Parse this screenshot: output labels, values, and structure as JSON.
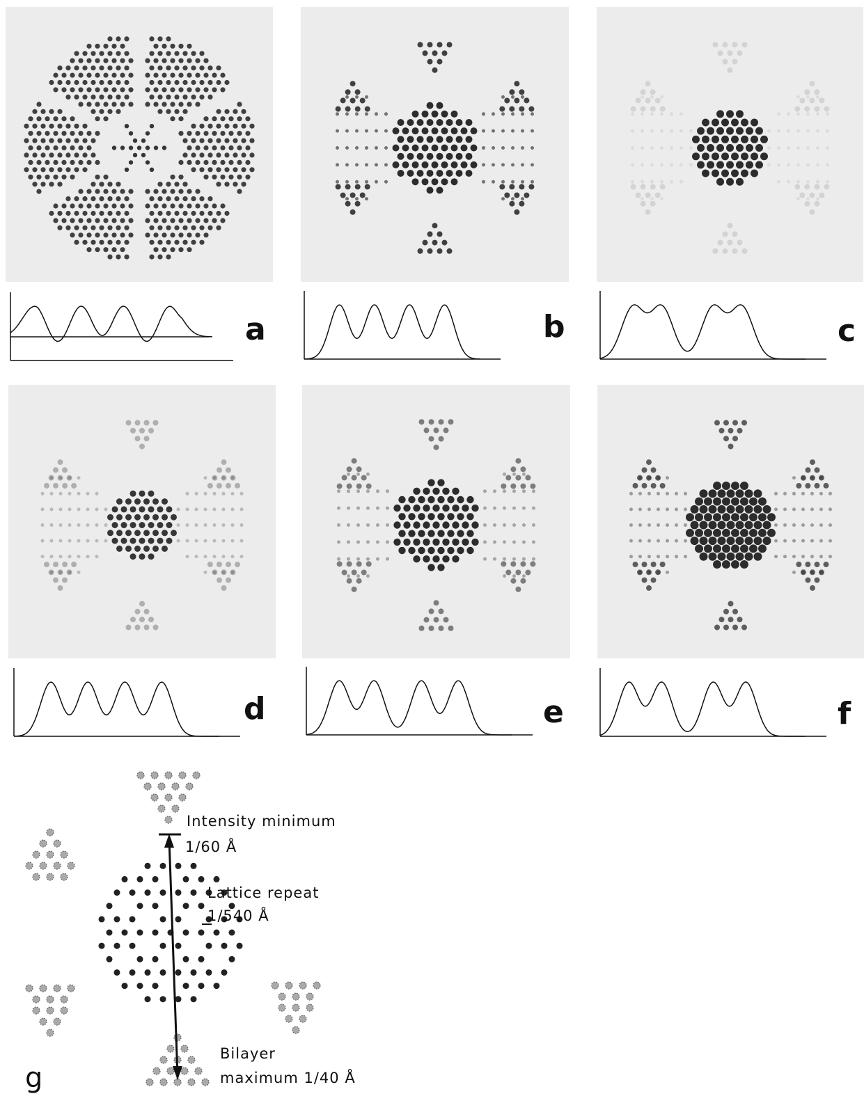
{
  "panels": [
    {
      "label": "a"
    },
    {
      "label": "b"
    },
    {
      "label": "c"
    },
    {
      "label": "d"
    },
    {
      "label": "e"
    },
    {
      "label": "f"
    }
  ],
  "panel_g": {
    "label": "g",
    "annotations": {
      "intensity_minimum": "Intensity minimum",
      "intensity_minimum_value": "1/60 Å",
      "lattice_repeat": "Lattice repeat",
      "lattice_repeat_value": "1/540 Å",
      "bilayer": "Bilayer",
      "bilayer_maximum": "maximum  1/40 Å"
    }
  }
}
